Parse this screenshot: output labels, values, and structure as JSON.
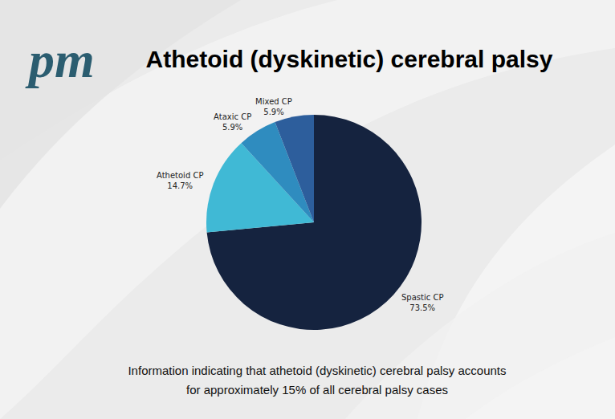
{
  "chart_data": {
    "type": "pie",
    "logo": "pm",
    "title": "Athetoid (dyskinetic) cerebral palsy",
    "categories": [
      "Spastic CP",
      "Athetoid CP",
      "Ataxic CP",
      "Mixed CP"
    ],
    "values": [
      73.5,
      14.7,
      5.9,
      5.9
    ],
    "value_labels": [
      "73.5%",
      "14.7%",
      "5.9%",
      "5.9%"
    ],
    "colors": [
      "#15233f",
      "#40b9d5",
      "#2f8cbf",
      "#2d5e9c"
    ],
    "data_labels": true,
    "annotations": [
      "Information indicating that athetoid (dyskinetic) cerebral palsy accounts",
      "for approximately 15% of all cerebral palsy cases"
    ]
  }
}
